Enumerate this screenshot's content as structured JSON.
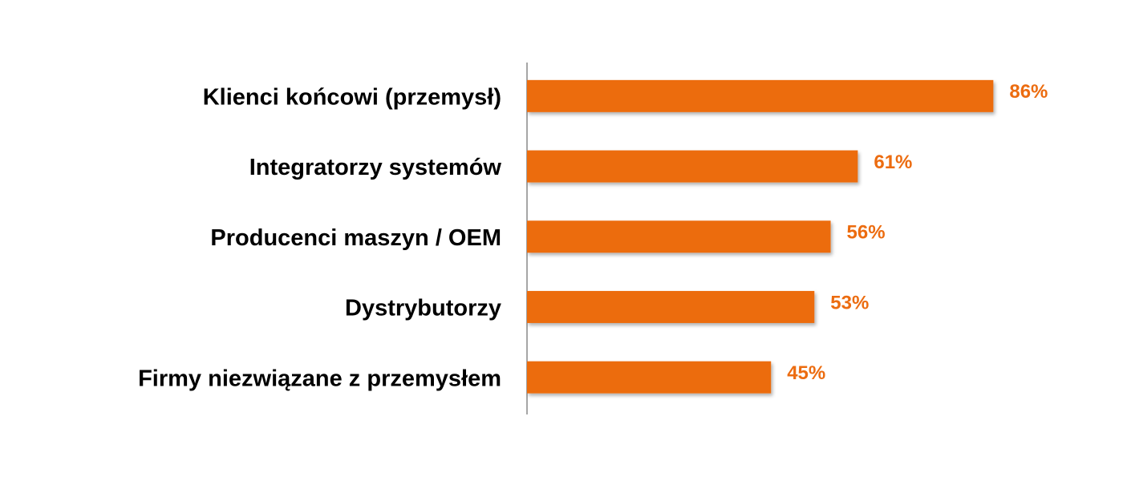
{
  "chart_data": {
    "type": "barh",
    "categories": [
      "Klienci końcowi (przemysł)",
      "Integratorzy systemów",
      "Producenci maszyn / OEM",
      "Dystrybutorzy",
      "Firmy niezwiązane z przemysłem"
    ],
    "values": [
      86,
      61,
      56,
      53,
      45
    ],
    "value_labels": [
      "86%",
      "61%",
      "56%",
      "53%",
      "45%"
    ],
    "color": "#ec6c10",
    "xlim": [
      0,
      100
    ]
  }
}
